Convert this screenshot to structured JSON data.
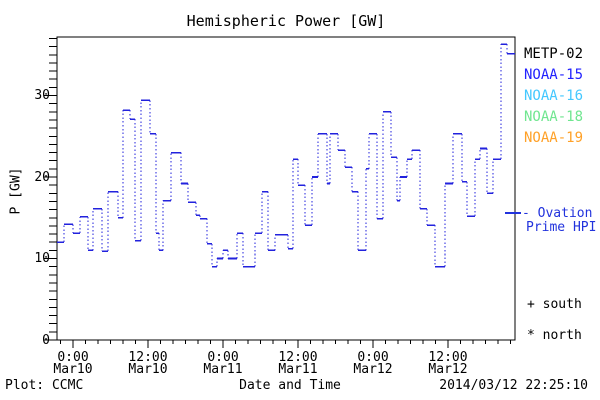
{
  "title": "Hemispheric Power [GW]",
  "y_axis": {
    "label": "P [GW]",
    "ticks": [
      0,
      10,
      20,
      30
    ]
  },
  "x_axis": {
    "label": "Date and Time",
    "ticks": [
      {
        "t": 0,
        "time": "0:00",
        "date": "Mar10"
      },
      {
        "t": 12,
        "time": "12:00",
        "date": "Mar10"
      },
      {
        "t": 24,
        "time": "0:00",
        "date": "Mar11"
      },
      {
        "t": 36,
        "time": "12:00",
        "date": "Mar11"
      },
      {
        "t": 48,
        "time": "0:00",
        "date": "Mar12"
      },
      {
        "t": 60,
        "time": "12:00",
        "date": "Mar12"
      }
    ]
  },
  "legend": {
    "satellites": [
      {
        "label": "METP-02",
        "color": "#000000"
      },
      {
        "label": "NOAA-15",
        "color": "#2222ff"
      },
      {
        "label": "NOAA-16",
        "color": "#44c8ff"
      },
      {
        "label": "NOAA-18",
        "color": "#70e690"
      },
      {
        "label": "NOAA-19",
        "color": "#ffa128"
      }
    ],
    "model": {
      "line1": "- Ovation",
      "line2": "Prime HPI",
      "color": "#2233dd"
    },
    "markers": {
      "south": "+ south",
      "north": "* north"
    }
  },
  "footer": {
    "left": "Plot: CCMC",
    "right": "2014/03/12 22:25:10"
  },
  "colors": {
    "line": "#2222dd",
    "frame": "#000000"
  },
  "chart_data": {
    "type": "line",
    "style": "step-after, horizontal runs solid, vertical transitions dotted",
    "title": "Hemispheric Power [GW]",
    "xlabel": "Date and Time",
    "ylabel": "P [GW]",
    "x_unit": "hours since Mar10 00:00 UT",
    "xlim": [
      -2.56,
      70.72
    ],
    "ylim": [
      0,
      37.2
    ],
    "grid": false,
    "legend_position": "right",
    "series": [
      {
        "name": "Ovation Prime HPI",
        "color": "#2222dd",
        "points": [
          [
            -2.56,
            12.0
          ],
          [
            -1.44,
            14.2
          ],
          [
            0.0,
            13.1
          ],
          [
            1.12,
            15.1
          ],
          [
            2.4,
            11.0
          ],
          [
            3.2,
            16.1
          ],
          [
            4.64,
            10.9
          ],
          [
            5.6,
            18.2
          ],
          [
            7.2,
            15.0
          ],
          [
            8.0,
            28.2
          ],
          [
            9.12,
            27.1
          ],
          [
            9.92,
            12.2
          ],
          [
            10.88,
            29.4
          ],
          [
            12.32,
            25.3
          ],
          [
            13.28,
            13.1
          ],
          [
            13.76,
            11.0
          ],
          [
            14.4,
            17.1
          ],
          [
            15.68,
            23.0
          ],
          [
            17.28,
            19.2
          ],
          [
            18.4,
            16.9
          ],
          [
            19.68,
            15.3
          ],
          [
            20.32,
            14.9
          ],
          [
            21.44,
            11.8
          ],
          [
            22.24,
            9.0
          ],
          [
            23.04,
            10.0
          ],
          [
            24.0,
            11.0
          ],
          [
            24.8,
            10.0
          ],
          [
            26.24,
            13.1
          ],
          [
            27.2,
            9.0
          ],
          [
            29.12,
            13.1
          ],
          [
            30.24,
            18.2
          ],
          [
            31.2,
            11.0
          ],
          [
            32.32,
            12.9
          ],
          [
            34.4,
            11.2
          ],
          [
            35.2,
            22.2
          ],
          [
            36.0,
            19.0
          ],
          [
            37.12,
            14.1
          ],
          [
            38.24,
            20.0
          ],
          [
            39.2,
            25.3
          ],
          [
            40.64,
            19.2
          ],
          [
            41.12,
            25.3
          ],
          [
            42.4,
            23.3
          ],
          [
            43.52,
            21.2
          ],
          [
            44.64,
            18.2
          ],
          [
            45.6,
            11.0
          ],
          [
            46.88,
            21.0
          ],
          [
            47.36,
            25.3
          ],
          [
            48.64,
            14.9
          ],
          [
            49.6,
            28.0
          ],
          [
            50.88,
            22.4
          ],
          [
            51.84,
            17.1
          ],
          [
            52.32,
            20.0
          ],
          [
            53.44,
            22.2
          ],
          [
            54.24,
            23.3
          ],
          [
            55.52,
            16.1
          ],
          [
            56.64,
            14.1
          ],
          [
            57.92,
            9.0
          ],
          [
            59.52,
            19.2
          ],
          [
            60.8,
            25.3
          ],
          [
            62.24,
            19.4
          ],
          [
            63.04,
            15.2
          ],
          [
            64.32,
            22.2
          ],
          [
            65.12,
            23.5
          ],
          [
            66.24,
            18.0
          ],
          [
            67.2,
            22.2
          ],
          [
            68.48,
            36.3
          ],
          [
            69.44,
            35.1
          ]
        ],
        "end_t": 70.72
      }
    ]
  }
}
